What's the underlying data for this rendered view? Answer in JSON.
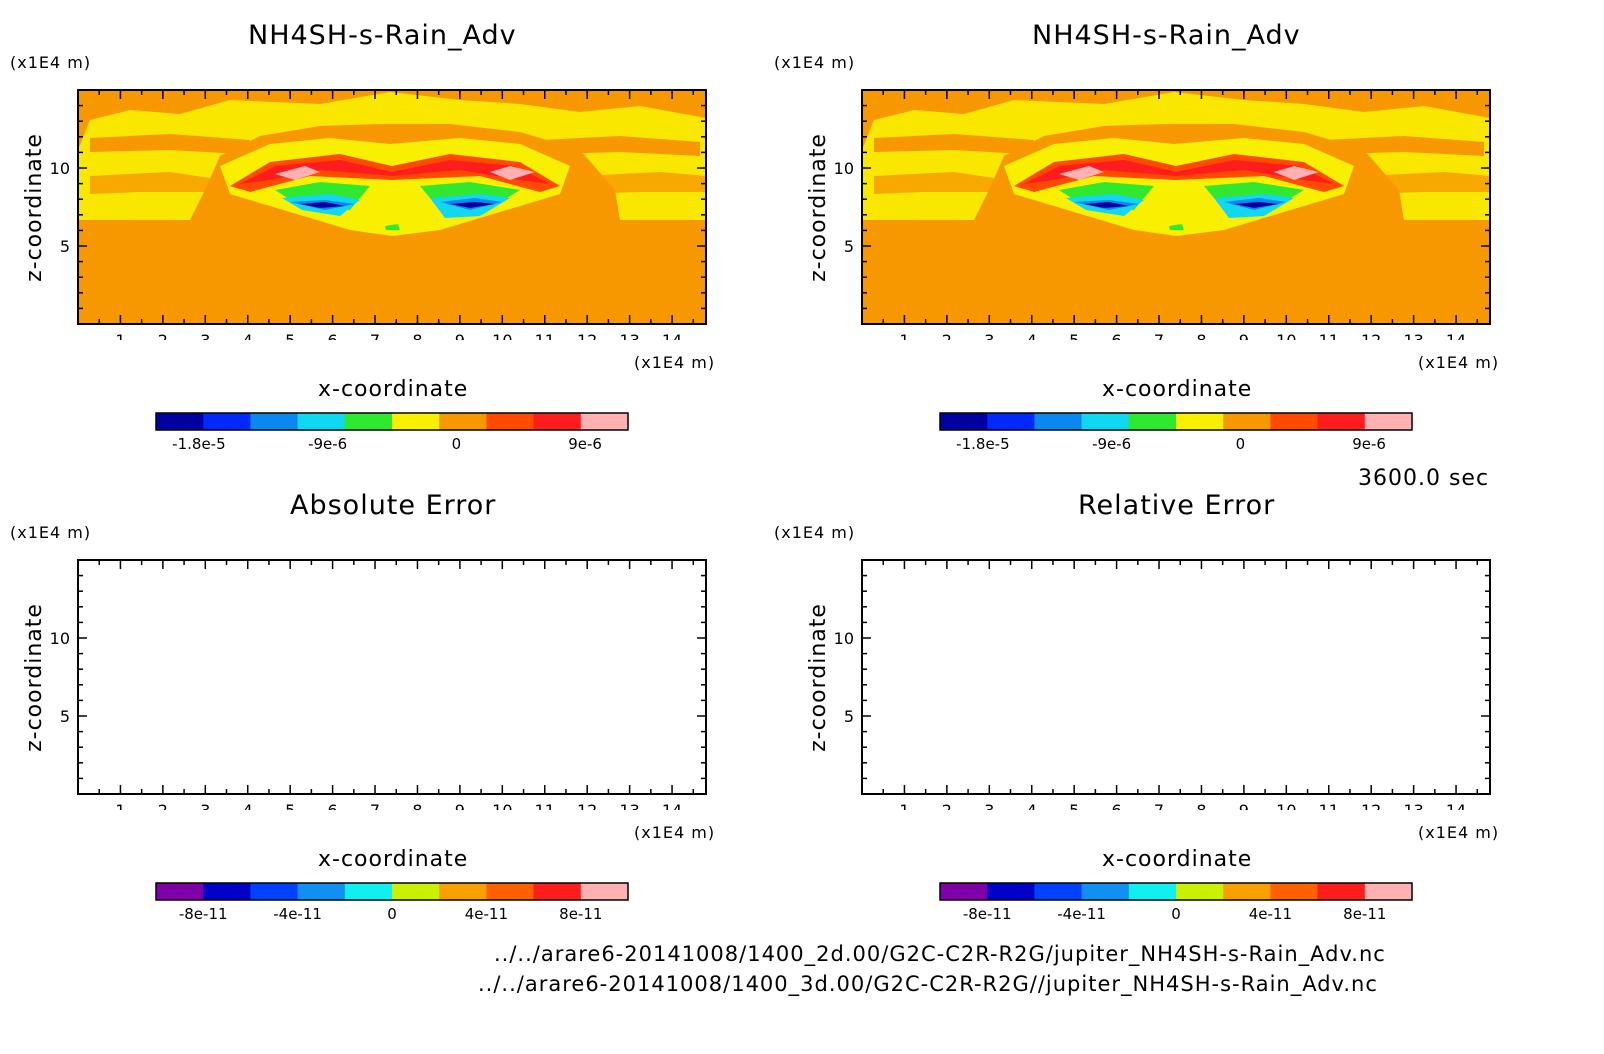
{
  "time_label": "3600.0 sec",
  "file_paths": [
    "../../arare6-20141008/1400_2d.00/G2C-C2R-R2G/jupiter_NH4SH-s-Rain_Adv.nc",
    "../../arare6-20141008/1400_3d.00/G2C-C2R-R2G//jupiter_NH4SH-s-Rain_Adv.nc"
  ],
  "colors": {
    "field_scale": [
      "#0000a0",
      "#0028ff",
      "#0a88f0",
      "#10d8f0",
      "#30e830",
      "#f8f000",
      "#f89800",
      "#ff4a00",
      "#ff1c1c",
      "#ffb0b0"
    ],
    "error_scale": [
      "#8000a8",
      "#0000c8",
      "#0040ff",
      "#1090f0",
      "#10f0f0",
      "#c8f000",
      "#f8a000",
      "#ff6000",
      "#ff1c1c",
      "#ffb0b0"
    ]
  },
  "chart_data": [
    {
      "type": "heatmap",
      "title": "NH4SH-s-Rain_Adv",
      "xlabel": "x-coordinate",
      "ylabel": "z-coordinate",
      "x_unit": "(x1E4 m)",
      "y_unit": "(x1E4 m)",
      "xlim": [
        0,
        14.8
      ],
      "ylim": [
        0,
        15
      ],
      "x_ticks": [
        "1",
        "2",
        "3",
        "4",
        "5",
        "6",
        "7",
        "8",
        "9",
        "10",
        "11",
        "12",
        "13",
        "14"
      ],
      "y_ticks": [
        "5",
        "10"
      ],
      "colorbar_ticks": [
        "-1.8e-5",
        "-9e-6",
        "0",
        "9e-6"
      ],
      "colorbar_range": [
        -2.1e-05,
        1.2e-05
      ],
      "colorbar_levels": 10
    },
    {
      "type": "heatmap",
      "title": "NH4SH-s-Rain_Adv",
      "xlabel": "x-coordinate",
      "ylabel": "z-coordinate",
      "x_unit": "(x1E4 m)",
      "y_unit": "(x1E4 m)",
      "xlim": [
        0,
        14.8
      ],
      "ylim": [
        0,
        15
      ],
      "x_ticks": [
        "1",
        "2",
        "3",
        "4",
        "5",
        "6",
        "7",
        "8",
        "9",
        "10",
        "11",
        "12",
        "13",
        "14"
      ],
      "y_ticks": [
        "5",
        "10"
      ],
      "colorbar_ticks": [
        "-1.8e-5",
        "-9e-6",
        "0",
        "9e-6"
      ],
      "colorbar_range": [
        -2.1e-05,
        1.2e-05
      ],
      "colorbar_levels": 10
    },
    {
      "type": "heatmap",
      "title": "Absolute Error",
      "xlabel": "x-coordinate",
      "ylabel": "z-coordinate",
      "x_unit": "(x1E4 m)",
      "y_unit": "(x1E4 m)",
      "xlim": [
        0,
        14.8
      ],
      "ylim": [
        0,
        15
      ],
      "x_ticks": [
        "1",
        "2",
        "3",
        "4",
        "5",
        "6",
        "7",
        "8",
        "9",
        "10",
        "11",
        "12",
        "13",
        "14"
      ],
      "y_ticks": [
        "5",
        "10"
      ],
      "colorbar_ticks": [
        "-8e-11",
        "-4e-11",
        "0",
        "4e-11",
        "8e-11"
      ],
      "colorbar_range": [
        -1e-10,
        1e-10
      ],
      "colorbar_levels": 10
    },
    {
      "type": "heatmap",
      "title": "Relative Error",
      "xlabel": "x-coordinate",
      "ylabel": "z-coordinate",
      "x_unit": "(x1E4 m)",
      "y_unit": "(x1E4 m)",
      "xlim": [
        0,
        14.8
      ],
      "ylim": [
        0,
        15
      ],
      "x_ticks": [
        "1",
        "2",
        "3",
        "4",
        "5",
        "6",
        "7",
        "8",
        "9",
        "10",
        "11",
        "12",
        "13",
        "14"
      ],
      "y_ticks": [
        "5",
        "10"
      ],
      "colorbar_ticks": [
        "-8e-11",
        "-4e-11",
        "0",
        "4e-11",
        "8e-11"
      ],
      "colorbar_range": [
        -1e-10,
        1e-10
      ],
      "colorbar_levels": 10
    }
  ]
}
